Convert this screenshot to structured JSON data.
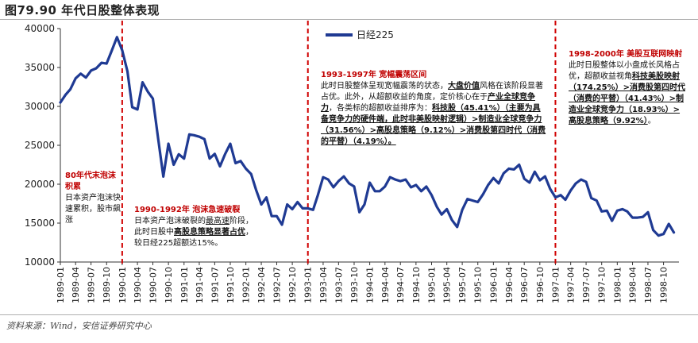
{
  "figure_title": "图79.90 年代日股整体表现",
  "source_note": "资料来源：Wind，安信证券研究中心",
  "chart_data": {
    "type": "line",
    "series": [
      {
        "name": "日经225",
        "color": "#1f3a93",
        "values": [
          [
            "1989-01",
            30500
          ],
          [
            "1989-02",
            31500
          ],
          [
            "1989-03",
            32200
          ],
          [
            "1989-04",
            33600
          ],
          [
            "1989-05",
            34200
          ],
          [
            "1989-06",
            33700
          ],
          [
            "1989-07",
            34600
          ],
          [
            "1989-08",
            34900
          ],
          [
            "1989-09",
            35600
          ],
          [
            "1989-10",
            35500
          ],
          [
            "1989-11",
            37200
          ],
          [
            "1989-12",
            38900
          ],
          [
            "1990-01",
            37200
          ],
          [
            "1990-02",
            34500
          ],
          [
            "1990-03",
            29900
          ],
          [
            "1990-04",
            29600
          ],
          [
            "1990-05",
            33100
          ],
          [
            "1990-06",
            31900
          ],
          [
            "1990-07",
            31000
          ],
          [
            "1990-08",
            25900
          ],
          [
            "1990-09",
            20980
          ],
          [
            "1990-10",
            25200
          ],
          [
            "1990-11",
            22500
          ],
          [
            "1990-12",
            23850
          ],
          [
            "1991-01",
            23300
          ],
          [
            "1991-02",
            26400
          ],
          [
            "1991-03",
            26300
          ],
          [
            "1991-04",
            26100
          ],
          [
            "1991-05",
            25800
          ],
          [
            "1991-06",
            23300
          ],
          [
            "1991-07",
            23900
          ],
          [
            "1991-08",
            22300
          ],
          [
            "1991-09",
            23900
          ],
          [
            "1991-10",
            25200
          ],
          [
            "1991-11",
            22700
          ],
          [
            "1991-12",
            22980
          ],
          [
            "1992-01",
            22000
          ],
          [
            "1992-02",
            21300
          ],
          [
            "1992-03",
            19300
          ],
          [
            "1992-04",
            17400
          ],
          [
            "1992-05",
            18300
          ],
          [
            "1992-06",
            15900
          ],
          [
            "1992-07",
            15900
          ],
          [
            "1992-08",
            14800
          ],
          [
            "1992-09",
            17400
          ],
          [
            "1992-10",
            16800
          ],
          [
            "1992-11",
            17700
          ],
          [
            "1992-12",
            16900
          ],
          [
            "1993-01",
            16900
          ],
          [
            "1993-02",
            16700
          ],
          [
            "1993-03",
            18600
          ],
          [
            "1993-04",
            20900
          ],
          [
            "1993-05",
            20600
          ],
          [
            "1993-06",
            19600
          ],
          [
            "1993-07",
            20400
          ],
          [
            "1993-08",
            21000
          ],
          [
            "1993-09",
            20100
          ],
          [
            "1993-10",
            19700
          ],
          [
            "1993-11",
            16400
          ],
          [
            "1993-12",
            17400
          ],
          [
            "1994-01",
            20200
          ],
          [
            "1994-02",
            19100
          ],
          [
            "1994-03",
            19100
          ],
          [
            "1994-04",
            19700
          ],
          [
            "1994-05",
            20900
          ],
          [
            "1994-06",
            20600
          ],
          [
            "1994-07",
            20400
          ],
          [
            "1994-08",
            20600
          ],
          [
            "1994-09",
            19600
          ],
          [
            "1994-10",
            19900
          ],
          [
            "1994-11",
            19100
          ],
          [
            "1994-12",
            19700
          ],
          [
            "1995-01",
            18600
          ],
          [
            "1995-02",
            17100
          ],
          [
            "1995-03",
            16100
          ],
          [
            "1995-04",
            16800
          ],
          [
            "1995-05",
            15400
          ],
          [
            "1995-06",
            14500
          ],
          [
            "1995-07",
            16700
          ],
          [
            "1995-08",
            18100
          ],
          [
            "1995-09",
            17900
          ],
          [
            "1995-10",
            17700
          ],
          [
            "1995-11",
            18700
          ],
          [
            "1995-12",
            19900
          ],
          [
            "1996-01",
            20800
          ],
          [
            "1996-02",
            20100
          ],
          [
            "1996-03",
            21400
          ],
          [
            "1996-04",
            22000
          ],
          [
            "1996-05",
            21900
          ],
          [
            "1996-06",
            22500
          ],
          [
            "1996-07",
            20700
          ],
          [
            "1996-08",
            20200
          ],
          [
            "1996-09",
            21600
          ],
          [
            "1996-10",
            20500
          ],
          [
            "1996-11",
            21000
          ],
          [
            "1996-12",
            19400
          ],
          [
            "1997-01",
            18300
          ],
          [
            "1997-02",
            18600
          ],
          [
            "1997-03",
            18000
          ],
          [
            "1997-04",
            19200
          ],
          [
            "1997-05",
            20100
          ],
          [
            "1997-06",
            20600
          ],
          [
            "1997-07",
            20300
          ],
          [
            "1997-08",
            18200
          ],
          [
            "1997-09",
            17900
          ],
          [
            "1997-10",
            16500
          ],
          [
            "1997-11",
            16600
          ],
          [
            "1997-12",
            15300
          ],
          [
            "1998-01",
            16600
          ],
          [
            "1998-02",
            16800
          ],
          [
            "1998-03",
            16500
          ],
          [
            "1998-04",
            15700
          ],
          [
            "1998-05",
            15700
          ],
          [
            "1998-06",
            15800
          ],
          [
            "1998-07",
            16400
          ],
          [
            "1998-08",
            14100
          ],
          [
            "1998-09",
            13400
          ],
          [
            "1998-10",
            13600
          ],
          [
            "1998-11",
            14900
          ],
          [
            "1998-12",
            13800
          ]
        ]
      }
    ],
    "x_tick_labels": [
      "1989-01",
      "1989-04",
      "1989-07",
      "1989-10",
      "1990-01",
      "1990-04",
      "1990-07",
      "1990-10",
      "1991-01",
      "1991-04",
      "1991-07",
      "1991-10",
      "1992-01",
      "1992-04",
      "1992-07",
      "1992-10",
      "1993-01",
      "1993-04",
      "1993-07",
      "1993-10",
      "1994-01",
      "1994-04",
      "1994-07",
      "1994-10",
      "1995-01",
      "1995-04",
      "1995-07",
      "1995-10",
      "1996-01",
      "1996-04",
      "1996-07",
      "1996-10",
      "1997-01",
      "1997-04",
      "1997-07",
      "1997-10",
      "1998-01",
      "1998-04",
      "1998-07",
      "1998-10"
    ],
    "ylim": [
      10000,
      40000
    ],
    "y_ticks": [
      10000,
      15000,
      20000,
      25000,
      30000,
      35000,
      40000
    ],
    "legend": "top-center",
    "grid": false,
    "divider_dates": [
      "1990-01",
      "1993-01",
      "1997-01"
    ],
    "divider_color": "#d00000"
  },
  "annotations": {
    "a1": {
      "head": "80年代末泡沫积累",
      "body": "日本资产泡沫快速累积，股市飙涨"
    },
    "a2": {
      "head": "1990-1992年 泡沫急速破裂",
      "l1a": "日本资产泡沫破裂的",
      "l1b": "最高速",
      "l1c": "阶段，",
      "l2a": "此时日股中",
      "l2b": "高股息策略显著占优",
      "l2c": "，",
      "l3": "较日经225超额达15%。"
    },
    "a3": {
      "head": "1993-1997年 宽幅震荡区间",
      "p1": "此时日股整体呈现宽幅震荡的状态，",
      "p2": "大盘价值",
      "p3": "风格在该阶段显著占优。此外，从超额收益的角度，定价核心在于",
      "p4": "产业全球竞争力",
      "p5": "，各类标的超额收益排序为：",
      "p6": "科技股（45.41%）（主要为具备竞争力的硬件端，此时非美股映射逻辑）>制造业全球竞争力（31.56%）>高股息策略（9.12%）>消费股第四时代（消费的平替）（4.19%）。"
    },
    "a4": {
      "head": "1998-2000年 美股互联网映射",
      "p1": "此时日股整体以小盘成长风格占优，超额收益视角",
      "p2": "科技美股映射（174.25%）>消费股第四时代（消费的平替）（41.43%）>制造业全球竞争力（18.93%）>高股息策略（9.92%）",
      "p3": "。"
    }
  }
}
